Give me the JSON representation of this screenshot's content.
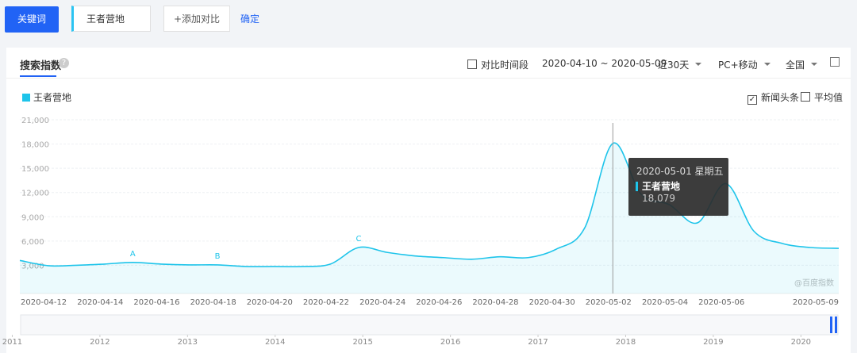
{
  "toolbar": {
    "keyword_button": "关键词",
    "keyword": "王者营地",
    "add_compare": "+添加对比",
    "confirm": "确定"
  },
  "panel": {
    "title": "搜索指数",
    "compare_period": "对比时间段",
    "date_range": "2020-04-10 ~ 2020-05-09",
    "period": "近30天",
    "device": "PC+移动",
    "region": "全国",
    "news": "新闻头条",
    "average": "平均值",
    "watermark": "@百度指数"
  },
  "chart_data": {
    "type": "line",
    "categories": [
      "2020-04-10",
      "2020-04-11",
      "2020-04-12",
      "2020-04-13",
      "2020-04-14",
      "2020-04-15",
      "2020-04-16",
      "2020-04-17",
      "2020-04-18",
      "2020-04-19",
      "2020-04-20",
      "2020-04-21",
      "2020-04-22",
      "2020-04-23",
      "2020-04-24",
      "2020-04-25",
      "2020-04-26",
      "2020-04-27",
      "2020-04-28",
      "2020-04-29",
      "2020-04-30",
      "2020-05-01",
      "2020-05-02",
      "2020-05-03",
      "2020-05-04",
      "2020-05-05",
      "2020-05-06",
      "2020-05-07",
      "2020-05-08",
      "2020-05-09"
    ],
    "xtick_categories": [
      2,
      4,
      6,
      8,
      10,
      12,
      14,
      16,
      18,
      20,
      22,
      24,
      26,
      29
    ],
    "series": [
      {
        "name": "王者营地",
        "color": "#1ec4ea",
        "values": [
          3600,
          2950,
          3000,
          3150,
          3350,
          3150,
          3050,
          3050,
          2850,
          2850,
          2850,
          3150,
          5200,
          4600,
          4150,
          3950,
          3750,
          4050,
          3950,
          5000,
          7600,
          18079,
          11800,
          10500,
          8250,
          13100,
          7200,
          5700,
          5200,
          5100
        ]
      }
    ],
    "ylim": [
      0,
      21000
    ],
    "yticks": [
      {
        "value": 3000,
        "label": "3,000"
      },
      {
        "value": 6000,
        "label": "6,000"
      },
      {
        "value": 9000,
        "label": "9,000"
      },
      {
        "value": 12000,
        "label": "12,000"
      },
      {
        "value": 15000,
        "label": "15,000"
      },
      {
        "value": 18000,
        "label": "18,000"
      },
      {
        "value": 21000,
        "label": "21,000"
      }
    ],
    "grid": true,
    "annotations": [
      {
        "text": "A",
        "category": "2020-04-14"
      },
      {
        "text": "B",
        "category": "2020-04-17"
      },
      {
        "text": "C",
        "category": "2020-04-22"
      }
    ],
    "tooltip": {
      "category": "2020-05-01",
      "title": "2020-05-01 星期五",
      "value_label": "18,079"
    },
    "overview": {
      "xlim": [
        2010.86,
        2020.64
      ],
      "xticks": [
        2011,
        2012,
        2013,
        2014,
        2015,
        2016,
        2017,
        2018,
        2019,
        2020
      ]
    }
  }
}
